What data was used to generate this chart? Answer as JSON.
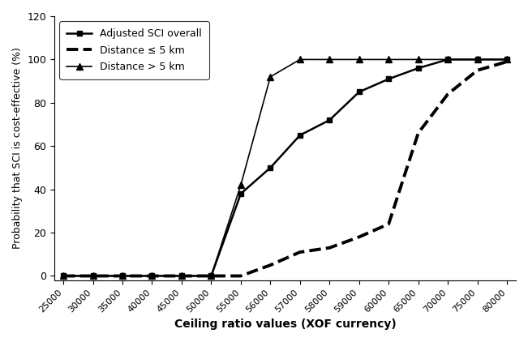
{
  "title": "",
  "xlabel": "Ceiling ratio values (XOF currency)",
  "ylabel": "Probability that SCI is cost-effective (%)",
  "ylim": [
    -2,
    120
  ],
  "yticks": [
    0,
    20,
    40,
    60,
    80,
    100,
    120
  ],
  "xtick_labels": [
    "25000",
    "30000",
    "35000",
    "40000",
    "45000",
    "50000",
    "55000",
    "56000",
    "57000",
    "58000",
    "59000",
    "60000",
    "65000",
    "70000",
    "75000",
    "80000"
  ],
  "series1": {
    "label": "Adjusted SCI overall",
    "y": [
      0,
      0,
      0,
      0,
      0,
      0,
      38,
      50,
      65,
      72,
      85,
      91,
      96,
      100,
      100,
      100
    ],
    "color": "#000000",
    "linestyle": "-",
    "linewidth": 1.8,
    "marker": "s",
    "markersize": 5,
    "markerfacecolor": "#000000"
  },
  "series2": {
    "label": "Distance ≤ 5 km",
    "y": [
      0,
      0,
      0,
      0,
      0,
      0,
      0,
      5,
      11,
      13,
      18,
      24,
      66,
      84,
      95,
      99
    ],
    "color": "#000000",
    "linestyle": "--",
    "linewidth": 2.8,
    "marker": "none",
    "markersize": 0,
    "markerfacecolor": "#000000"
  },
  "series3": {
    "label": "Distance > 5 km",
    "y": [
      0,
      0,
      0,
      0,
      0,
      0,
      42,
      92,
      100,
      100,
      100,
      100,
      100,
      100,
      100,
      100
    ],
    "color": "#000000",
    "linestyle": "-",
    "linewidth": 1.2,
    "marker": "^",
    "markersize": 6,
    "markerfacecolor": "#000000"
  },
  "background_color": "#ffffff",
  "legend_loc": "upper left",
  "fontsize": 9
}
